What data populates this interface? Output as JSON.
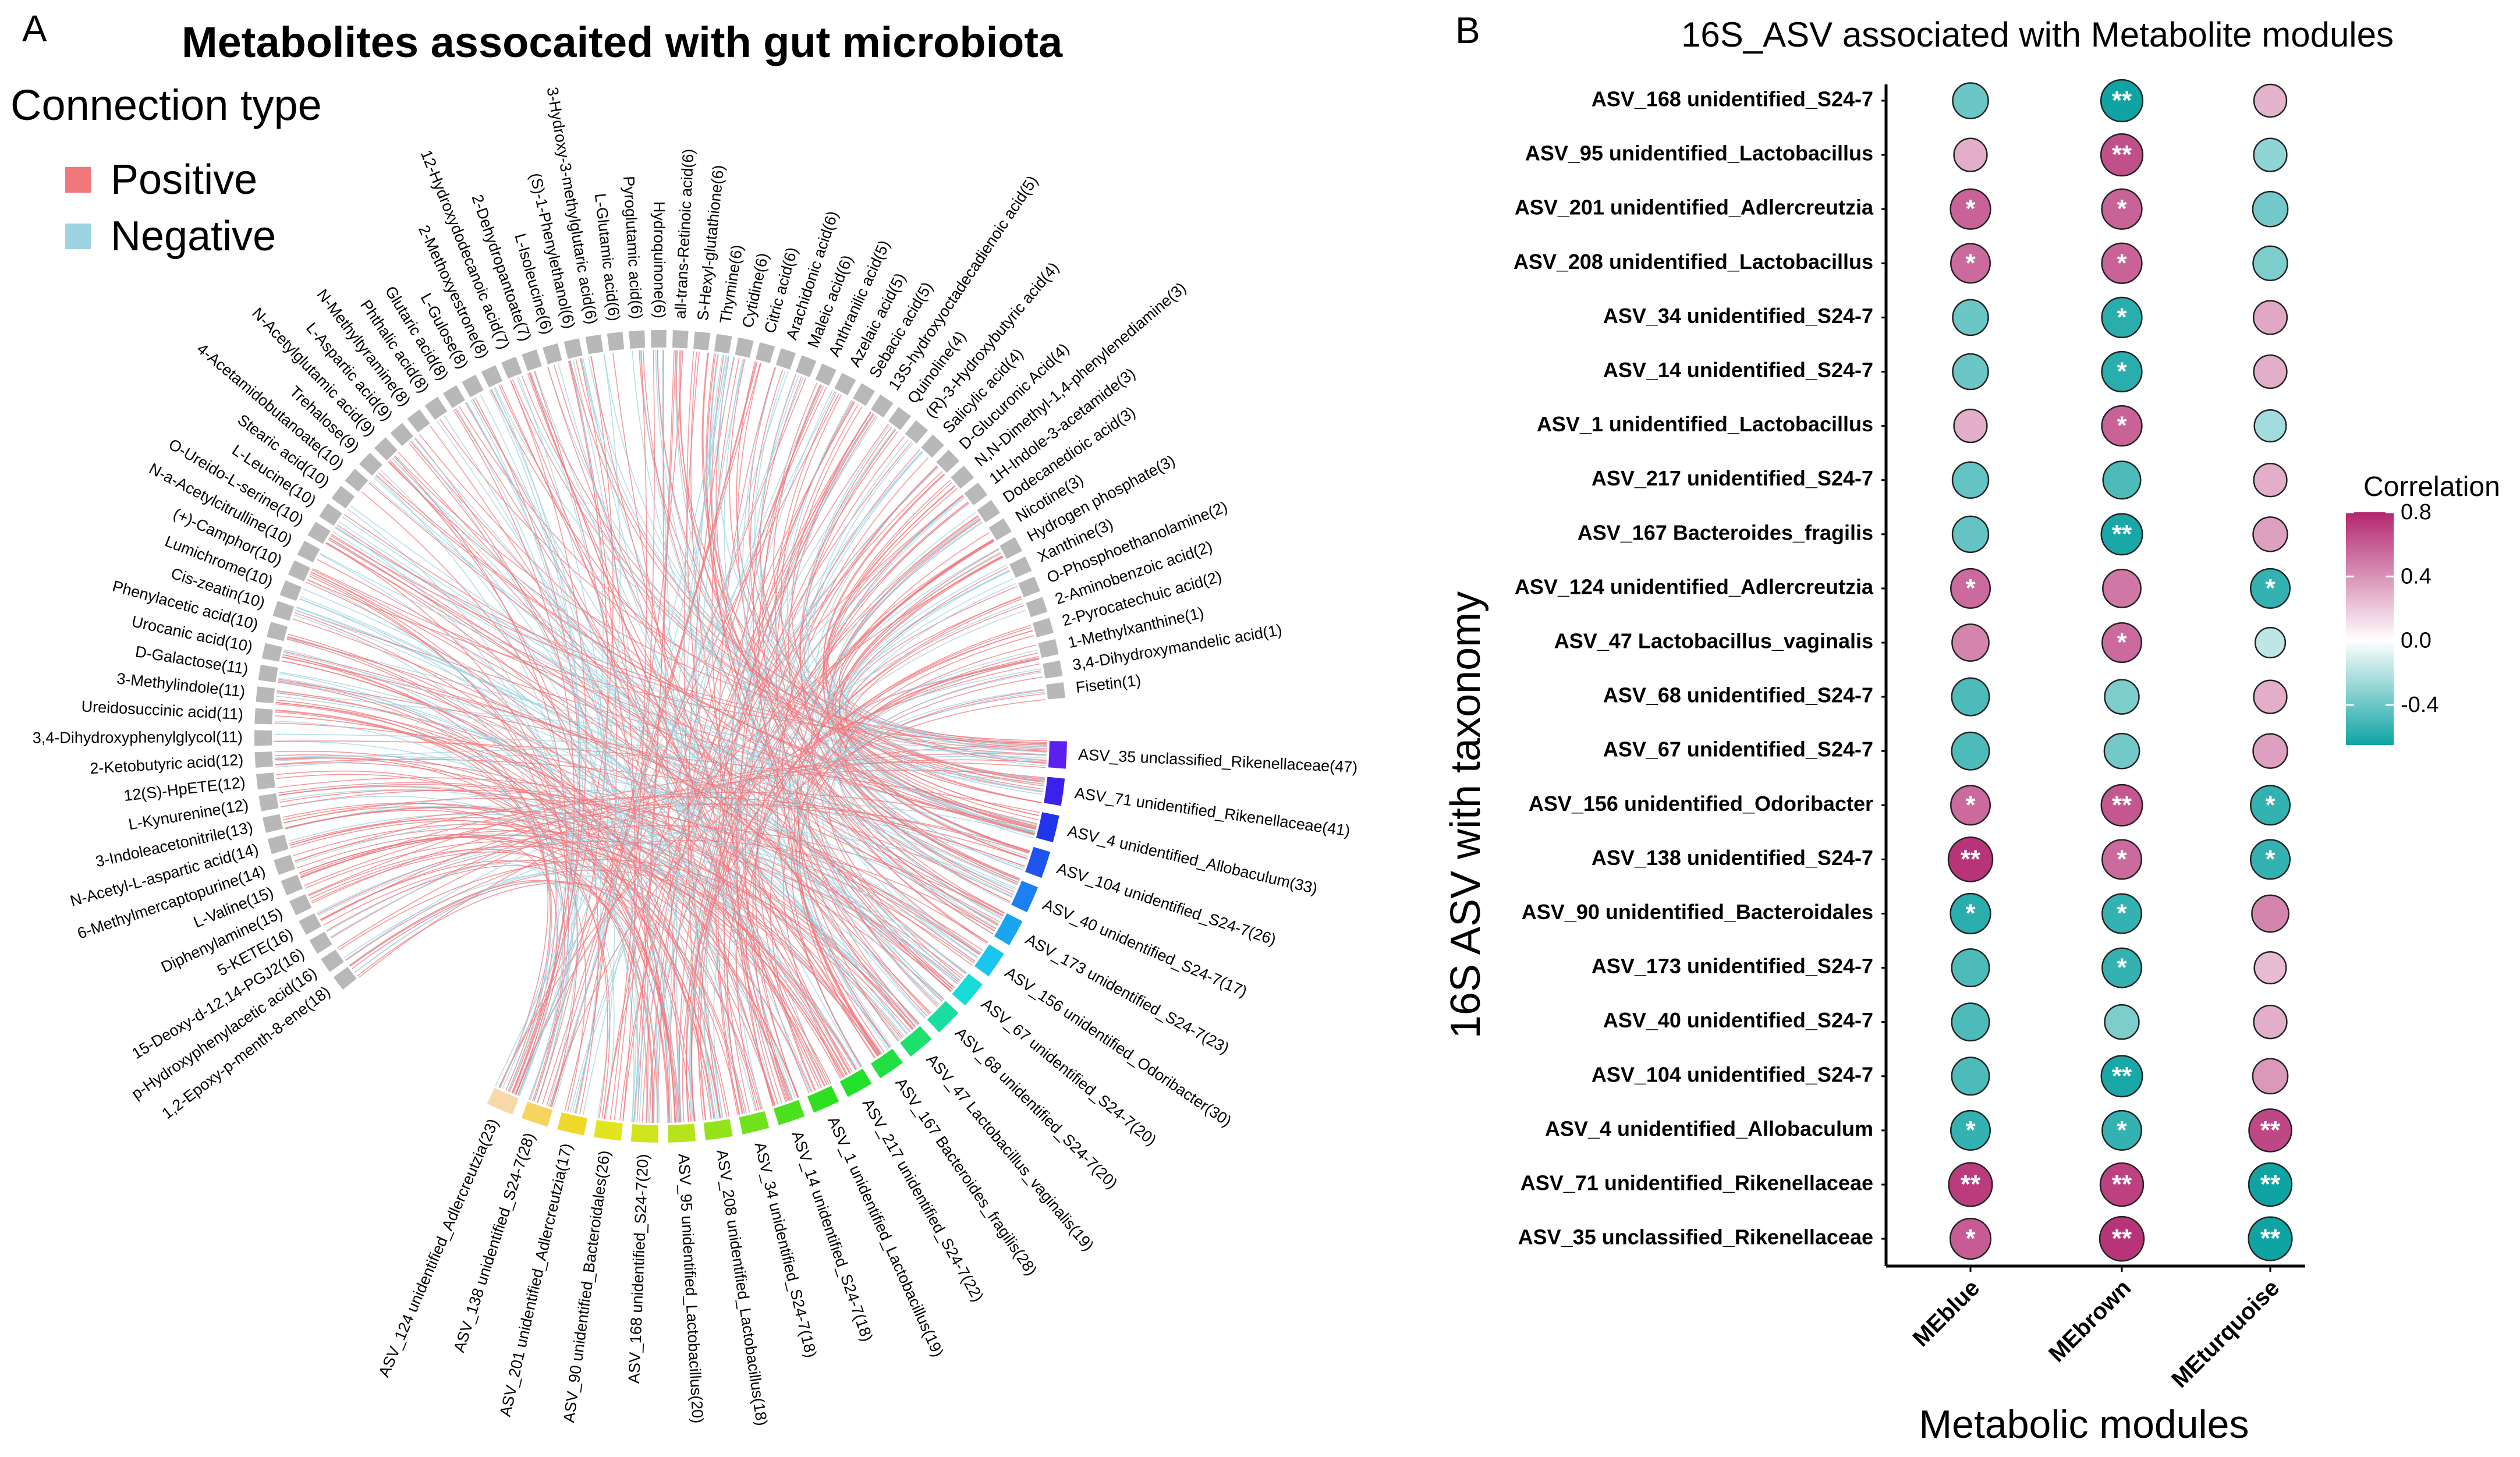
{
  "panel_a": {
    "label": "A",
    "title": "Metabolites assocaited with gut microbiota",
    "legend_title": "Connection type",
    "legend": [
      {
        "label": "Positive",
        "color": "#f0787d"
      },
      {
        "label": "Negative",
        "color": "#9fd3e0"
      }
    ]
  },
  "panel_b": {
    "label": "B",
    "title": "16S_ASV associated with Metabolite modules",
    "colorbar_title": "Correlation"
  },
  "chart_data": [
    {
      "type": "chord",
      "title": "Metabolites assocaited with gut microbiota",
      "legend_title": "Connection type",
      "series": [
        "Positive",
        "Negative"
      ],
      "metabolites": [
        "Fisetin(1)",
        "3,4-Dihydroxymandelic acid(1)",
        "1-Methylxanthine(1)",
        "2-Pyrocatechuic acid(2)",
        "2-Aminobenzoic acid(2)",
        "O-Phosphoethanolamine(2)",
        "Xanthine(3)",
        "Hydrogen phosphate(3)",
        "Nicotine(3)",
        "Dodecanedioic acid(3)",
        "1H-Indole-3-acetamide(3)",
        "N,N-Dimethyl-1,4-phenylenediamine(3)",
        "D-Glucuronic Acid(4)",
        "Salicylic acid(4)",
        "(R)-3-Hydroxybutyric acid(4)",
        "Quinoline(4)",
        "13S-hydroxyoctadecadienoic acid(5)",
        "Sebacic acid(5)",
        "Azelaic acid(5)",
        "Anthranilic acid(5)",
        "Maleic acid(6)",
        "Arachidonic acid(6)",
        "Citric acid(6)",
        "Cytidine(6)",
        "Thymine(6)",
        "S-Hexyl-glutathione(6)",
        "all-trans-Retinoic acid(6)",
        "Hydroquinone(6)",
        "Pyroglutamic acid(6)",
        "L-Glutamic acid(6)",
        "3-Hydroxy-3-methylglutaric acid(6)",
        "(S)-1-Phenylethanol(6)",
        "L-Isoleucine(6)",
        "2-Dehydropantoate(7)",
        "12-Hydroxydodecanoic acid(7)",
        "2-Methoxyestrone(8)",
        "L-Gulose(8)",
        "Glutaric acid(8)",
        "Phthalic acid(8)",
        "N-Methyltyramine(8)",
        "L-Aspartic acid(9)",
        "N-Acetylglutamic acid(9)",
        "Trehalose(9)",
        "4-Acetamidobutanoate(10)",
        "Stearic acid(10)",
        "L-Leucine(10)",
        "O-Ureido-L-serine(10)",
        "N-a-Acetylcitrulline(10)",
        "(+)-Camphor(10)",
        "Lumichrome(10)",
        "Cis-zeatin(10)",
        "Phenylacetic acid(10)",
        "Urocanic acid(10)",
        "D-Galactose(11)",
        "3-Methylindole(11)",
        "Ureidosuccinic acid(11)",
        "3,4-Dihydroxyphenylglycol(11)",
        "2-Ketobutyric acid(12)",
        "12(S)-HpETE(12)",
        "L-Kynurenine(12)",
        "3-Indoleacetonitrile(13)",
        "N-Acetyl-L-aspartic acid(14)",
        "6-Methylmercaptopurine(14)",
        "L-Valine(15)",
        "Diphenylamine(15)",
        "5-KETE(16)",
        "15-Deoxy-d-12,14-PGJ2(16)",
        "p-Hydroxyphenylacetic acid(16)",
        "1,2-Epoxy-p-menth-8-ene(18)"
      ],
      "asvs": [
        "ASV_35 unclassified_Rikenellaceae(47)",
        "ASV_71 unidentified_Rikenellaceae(41)",
        "ASV_4 unidentified_Allobaculum(33)",
        "ASV_104 unidentified_S24-7(26)",
        "ASV_40 unidentified_S24-7(17)",
        "ASV_173 unidentified_S24-7(23)",
        "ASV_156 unidentified_Odoribacter(30)",
        "ASV_67 unidentified_S24-7(20)",
        "ASV_68 unidentified_S24-7(20)",
        "ASV_47 Lactobacillus_vaginalis(19)",
        "ASV_167 Bacteroides_fragilis(28)",
        "ASV_217 unidentified_S24-7(22)",
        "ASV_1 unidentified_Lactobacillus(19)",
        "ASV_14 unidentified_S24-7(18)",
        "ASV_34 unidentified_S24-7(18)",
        "ASV_208 unidentified_Lactobacillus(18)",
        "ASV_95 unidentified_Lactobacillus(20)",
        "ASV_168 unidentified_S24-7(20)",
        "ASV_90 unidentified_Bacteroidales(26)",
        "ASV_201 unidentified_Adlercreutzia(17)",
        "ASV_138 unidentified_S24-7(28)",
        "ASV_124 unidentified_Adlercreutzia(23)"
      ],
      "asv_colors": [
        "#5b1ff0",
        "#3b20ee",
        "#2035ec",
        "#1f55ee",
        "#1e80f0",
        "#19a6ef",
        "#1ac6ef",
        "#16dbd7",
        "#1adc9e",
        "#1de06e",
        "#20e043",
        "#23e02a",
        "#2fe021",
        "#4be11e",
        "#6fe21d",
        "#93e31c",
        "#b6e31c",
        "#cfe41c",
        "#e4e41d",
        "#efd82c",
        "#f6d45e",
        "#f9d8a8"
      ],
      "metabolite_color": "#b8b8b8"
    },
    {
      "type": "dot-heatmap",
      "title": "16S_ASV associated with Metabolite modules",
      "xlabel": "Metabolic modules",
      "ylabel": "16S ASV with taxonomy",
      "colorbar": {
        "title": "Correlation",
        "ticks": [
          0.8,
          0.4,
          0.0,
          -0.4
        ],
        "tick_labels": [
          "0.8",
          "0.4",
          "0.0",
          "-0.4"
        ],
        "range": [
          -0.65,
          0.8
        ]
      },
      "columns": [
        "MEblue",
        "MEbrown",
        "MEturquoise"
      ],
      "rows": [
        {
          "label": "ASV_168 unidentified_S24-7",
          "values": [
            -0.4,
            -0.65,
            0.28
          ],
          "stars": [
            "",
            "**",
            ""
          ]
        },
        {
          "label": "ASV_95 unidentified_Lactobacillus",
          "values": [
            0.3,
            0.65,
            -0.3
          ],
          "stars": [
            "",
            "**",
            ""
          ]
        },
        {
          "label": "ASV_201 unidentified_Adlercreutzia",
          "values": [
            0.58,
            0.58,
            -0.38
          ],
          "stars": [
            "*",
            "*",
            ""
          ]
        },
        {
          "label": "ASV_208 unidentified_Lactobacillus",
          "values": [
            0.55,
            0.58,
            -0.35
          ],
          "stars": [
            "*",
            "*",
            ""
          ]
        },
        {
          "label": "ASV_34 unidentified_S24-7",
          "values": [
            -0.4,
            -0.58,
            0.32
          ],
          "stars": [
            "",
            "*",
            ""
          ]
        },
        {
          "label": "ASV_14 unidentified_S24-7",
          "values": [
            -0.4,
            -0.58,
            0.3
          ],
          "stars": [
            "",
            "*",
            ""
          ]
        },
        {
          "label": "ASV_1 unidentified_Lactobacillus",
          "values": [
            0.3,
            0.58,
            -0.25
          ],
          "stars": [
            "",
            "*",
            ""
          ]
        },
        {
          "label": "ASV_217 unidentified_S24-7",
          "values": [
            -0.42,
            -0.48,
            0.3
          ],
          "stars": [
            "",
            "",
            ""
          ]
        },
        {
          "label": "ASV_167 Bacteroides_fragilis",
          "values": [
            -0.42,
            -0.62,
            0.35
          ],
          "stars": [
            "",
            "**",
            ""
          ]
        },
        {
          "label": "ASV_124 unidentified_Adlercreutzia",
          "values": [
            0.55,
            0.5,
            -0.55
          ],
          "stars": [
            "*",
            "",
            "*"
          ]
        },
        {
          "label": "ASV_47 Lactobacillus_vaginalis",
          "values": [
            0.45,
            0.55,
            -0.18
          ],
          "stars": [
            "",
            "*",
            ""
          ]
        },
        {
          "label": "ASV_68 unidentified_S24-7",
          "values": [
            -0.48,
            -0.35,
            0.3
          ],
          "stars": [
            "",
            "",
            ""
          ]
        },
        {
          "label": "ASV_67 unidentified_S24-7",
          "values": [
            -0.48,
            -0.38,
            0.35
          ],
          "stars": [
            "",
            "",
            ""
          ]
        },
        {
          "label": "ASV_156 unidentified_Odoribacter",
          "values": [
            0.55,
            0.62,
            -0.55
          ],
          "stars": [
            "*",
            "**",
            "*"
          ]
        },
        {
          "label": "ASV_138 unidentified_S24-7",
          "values": [
            0.75,
            0.55,
            -0.55
          ],
          "stars": [
            "**",
            "*",
            "*"
          ]
        },
        {
          "label": "ASV_90 unidentified_Bacteroidales",
          "values": [
            -0.58,
            -0.55,
            0.45
          ],
          "stars": [
            "*",
            "*",
            ""
          ]
        },
        {
          "label": "ASV_173 unidentified_S24-7",
          "values": [
            -0.48,
            -0.55,
            0.25
          ],
          "stars": [
            "",
            "*",
            ""
          ]
        },
        {
          "label": "ASV_40 unidentified_S24-7",
          "values": [
            -0.48,
            -0.35,
            0.3
          ],
          "stars": [
            "",
            "",
            ""
          ]
        },
        {
          "label": "ASV_104 unidentified_S24-7",
          "values": [
            -0.48,
            -0.62,
            0.38
          ],
          "stars": [
            "",
            "**",
            ""
          ]
        },
        {
          "label": "ASV_4 unidentified_Allobaculum",
          "values": [
            -0.55,
            -0.55,
            0.68
          ],
          "stars": [
            "*",
            "*",
            "**"
          ]
        },
        {
          "label": "ASV_71 unidentified_Rikenellaceae",
          "values": [
            0.72,
            0.7,
            -0.7
          ],
          "stars": [
            "**",
            "**",
            "**"
          ]
        },
        {
          "label": "ASV_35 unclassified_Rikenellaceae",
          "values": [
            0.6,
            0.75,
            -0.72
          ],
          "stars": [
            "*",
            "**",
            "**"
          ]
        }
      ]
    }
  ]
}
